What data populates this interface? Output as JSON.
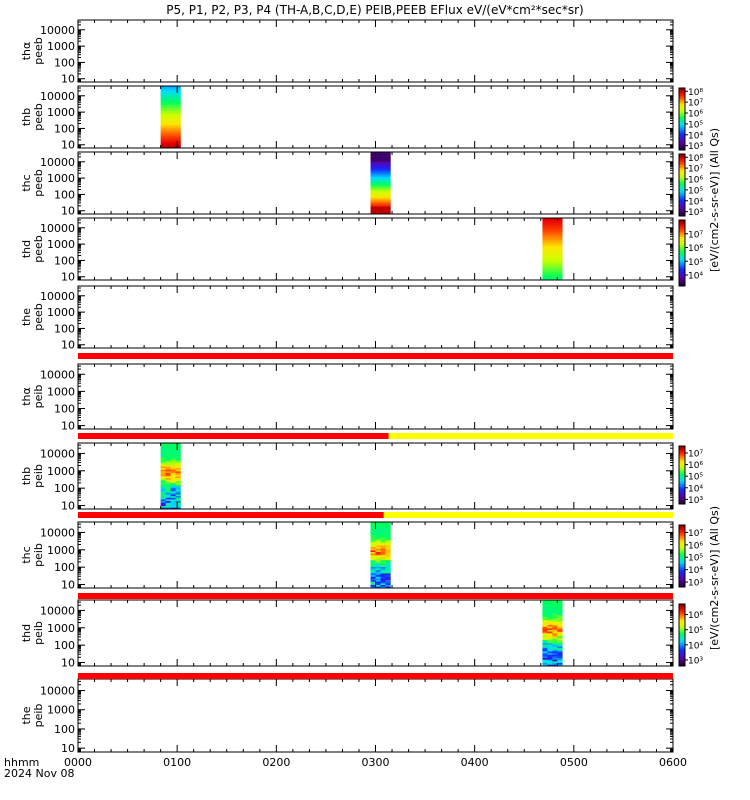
{
  "title": "P5, P1, P2, P3, P4 (TH-A,B,C,D,E) PEIB,PEEB EFlux eV/(eV*cm²*sec*sr)",
  "chart_data": {
    "type": "heatmap",
    "title": "P5, P1, P2, P3, P4 (TH-A,B,C,D,E) PEIB,PEEB EFlux eV/(eV*cm²*sec*sr)",
    "x_axis": {
      "label": "hhmm",
      "date": "2024 Nov 08",
      "ticks": [
        "0000",
        "0100",
        "0200",
        "0300",
        "0400",
        "0500",
        "0600"
      ],
      "range_minutes": [
        0,
        360
      ]
    },
    "y_scale": "log",
    "y_ticks": [
      10,
      100,
      1000,
      10000
    ],
    "y_ticks_text": [
      "10",
      "100",
      "1000",
      "10000"
    ],
    "panels": [
      {
        "id": "tha-peeb",
        "label1": "thα",
        "label2": "peeb",
        "bursts": [],
        "colorbar": null
      },
      {
        "id": "thb-peeb",
        "label1": "thb",
        "label2": "peeb",
        "bursts": [
          {
            "x_start_min": 50,
            "x_end_min": 62,
            "style": "electron-bright"
          }
        ],
        "colorbar": {
          "ticks": [
            "10³",
            "10⁴",
            "10⁵",
            "10⁶",
            "10⁷",
            "10⁸"
          ],
          "exp_min": 2.6,
          "exp_max": 8.3
        }
      },
      {
        "id": "thc-peeb",
        "label1": "thc",
        "label2": "peeb",
        "bursts": [
          {
            "x_start_min": 177,
            "x_end_min": 189,
            "style": "electron-dark"
          }
        ],
        "colorbar": {
          "ticks": [
            "10³",
            "10⁴",
            "10⁵",
            "10⁶",
            "10⁷",
            "10⁸"
          ],
          "exp_min": 2.6,
          "exp_max": 8.3
        }
      },
      {
        "id": "thd-peeb",
        "label1": "thd",
        "label2": "peeb",
        "bursts": [
          {
            "x_start_min": 281,
            "x_end_min": 293,
            "style": "electron-hot"
          }
        ],
        "colorbar": {
          "ticks": [
            "10⁴",
            "10⁵",
            "10⁶",
            "10⁷"
          ],
          "exp_min": 3.2,
          "exp_max": 8.0
        }
      },
      {
        "id": "the-peeb",
        "label1": "the",
        "label2": "peeb",
        "bursts": [],
        "colorbar": null
      },
      {
        "id": "tha-peib",
        "label1": "thα",
        "label2": "peib",
        "bursts": [],
        "colorbar": null
      },
      {
        "id": "thb-peib",
        "label1": "thb",
        "label2": "peib",
        "bursts": [
          {
            "x_start_min": 50,
            "x_end_min": 62,
            "style": "ion"
          }
        ],
        "colorbar": {
          "ticks": [
            "10³",
            "10⁴",
            "10⁵",
            "10⁶",
            "10⁷"
          ],
          "exp_min": 2.6,
          "exp_max": 7.6
        }
      },
      {
        "id": "thc-peib",
        "label1": "thc",
        "label2": "peib",
        "bursts": [
          {
            "x_start_min": 177,
            "x_end_min": 189,
            "style": "ion"
          }
        ],
        "colorbar": {
          "ticks": [
            "10³",
            "10⁴",
            "10⁵",
            "10⁶",
            "10⁷"
          ],
          "exp_min": 2.6,
          "exp_max": 7.6
        }
      },
      {
        "id": "thd-peib",
        "label1": "thd",
        "label2": "peib",
        "bursts": [
          {
            "x_start_min": 281,
            "x_end_min": 293,
            "style": "ion"
          }
        ],
        "colorbar": {
          "ticks": [
            "10³",
            "10⁴",
            "10⁵",
            "10⁶"
          ],
          "exp_min": 2.6,
          "exp_max": 6.7
        }
      },
      {
        "id": "the-peib",
        "label1": "the",
        "label2": "peib",
        "bursts": [],
        "colorbar": null
      }
    ],
    "mode_bars": [
      {
        "after_panel": "the-peeb",
        "segments": [
          {
            "x_start_min": 0,
            "x_end_min": 360,
            "color": "#ff0000"
          }
        ]
      },
      {
        "after_panel": "tha-peib",
        "segments": [
          {
            "x_start_min": 0,
            "x_end_min": 188,
            "color": "#ff0000"
          },
          {
            "x_start_min": 188,
            "x_end_min": 360,
            "color": "#ffff00"
          }
        ]
      },
      {
        "after_panel": "thb-peib",
        "segments": [
          {
            "x_start_min": 0,
            "x_end_min": 185,
            "color": "#ff0000"
          },
          {
            "x_start_min": 185,
            "x_end_min": 360,
            "color": "#ffff00"
          }
        ]
      },
      {
        "after_panel": "thc-peib",
        "segments": [
          {
            "x_start_min": 0,
            "x_end_min": 360,
            "color": "#ff0000"
          }
        ]
      },
      {
        "after_panel": "thd-peib",
        "segments": [
          {
            "x_start_min": 0,
            "x_end_min": 360,
            "color": "#ff0000"
          }
        ]
      }
    ],
    "right_labels": [
      {
        "text": "[eV/(cm2-s-sr-eV)] (All Qs)",
        "group": "peeb"
      },
      {
        "text": "[eV/(cm2-s-sr-eV)] (All Qs)",
        "group": "peib"
      }
    ]
  }
}
